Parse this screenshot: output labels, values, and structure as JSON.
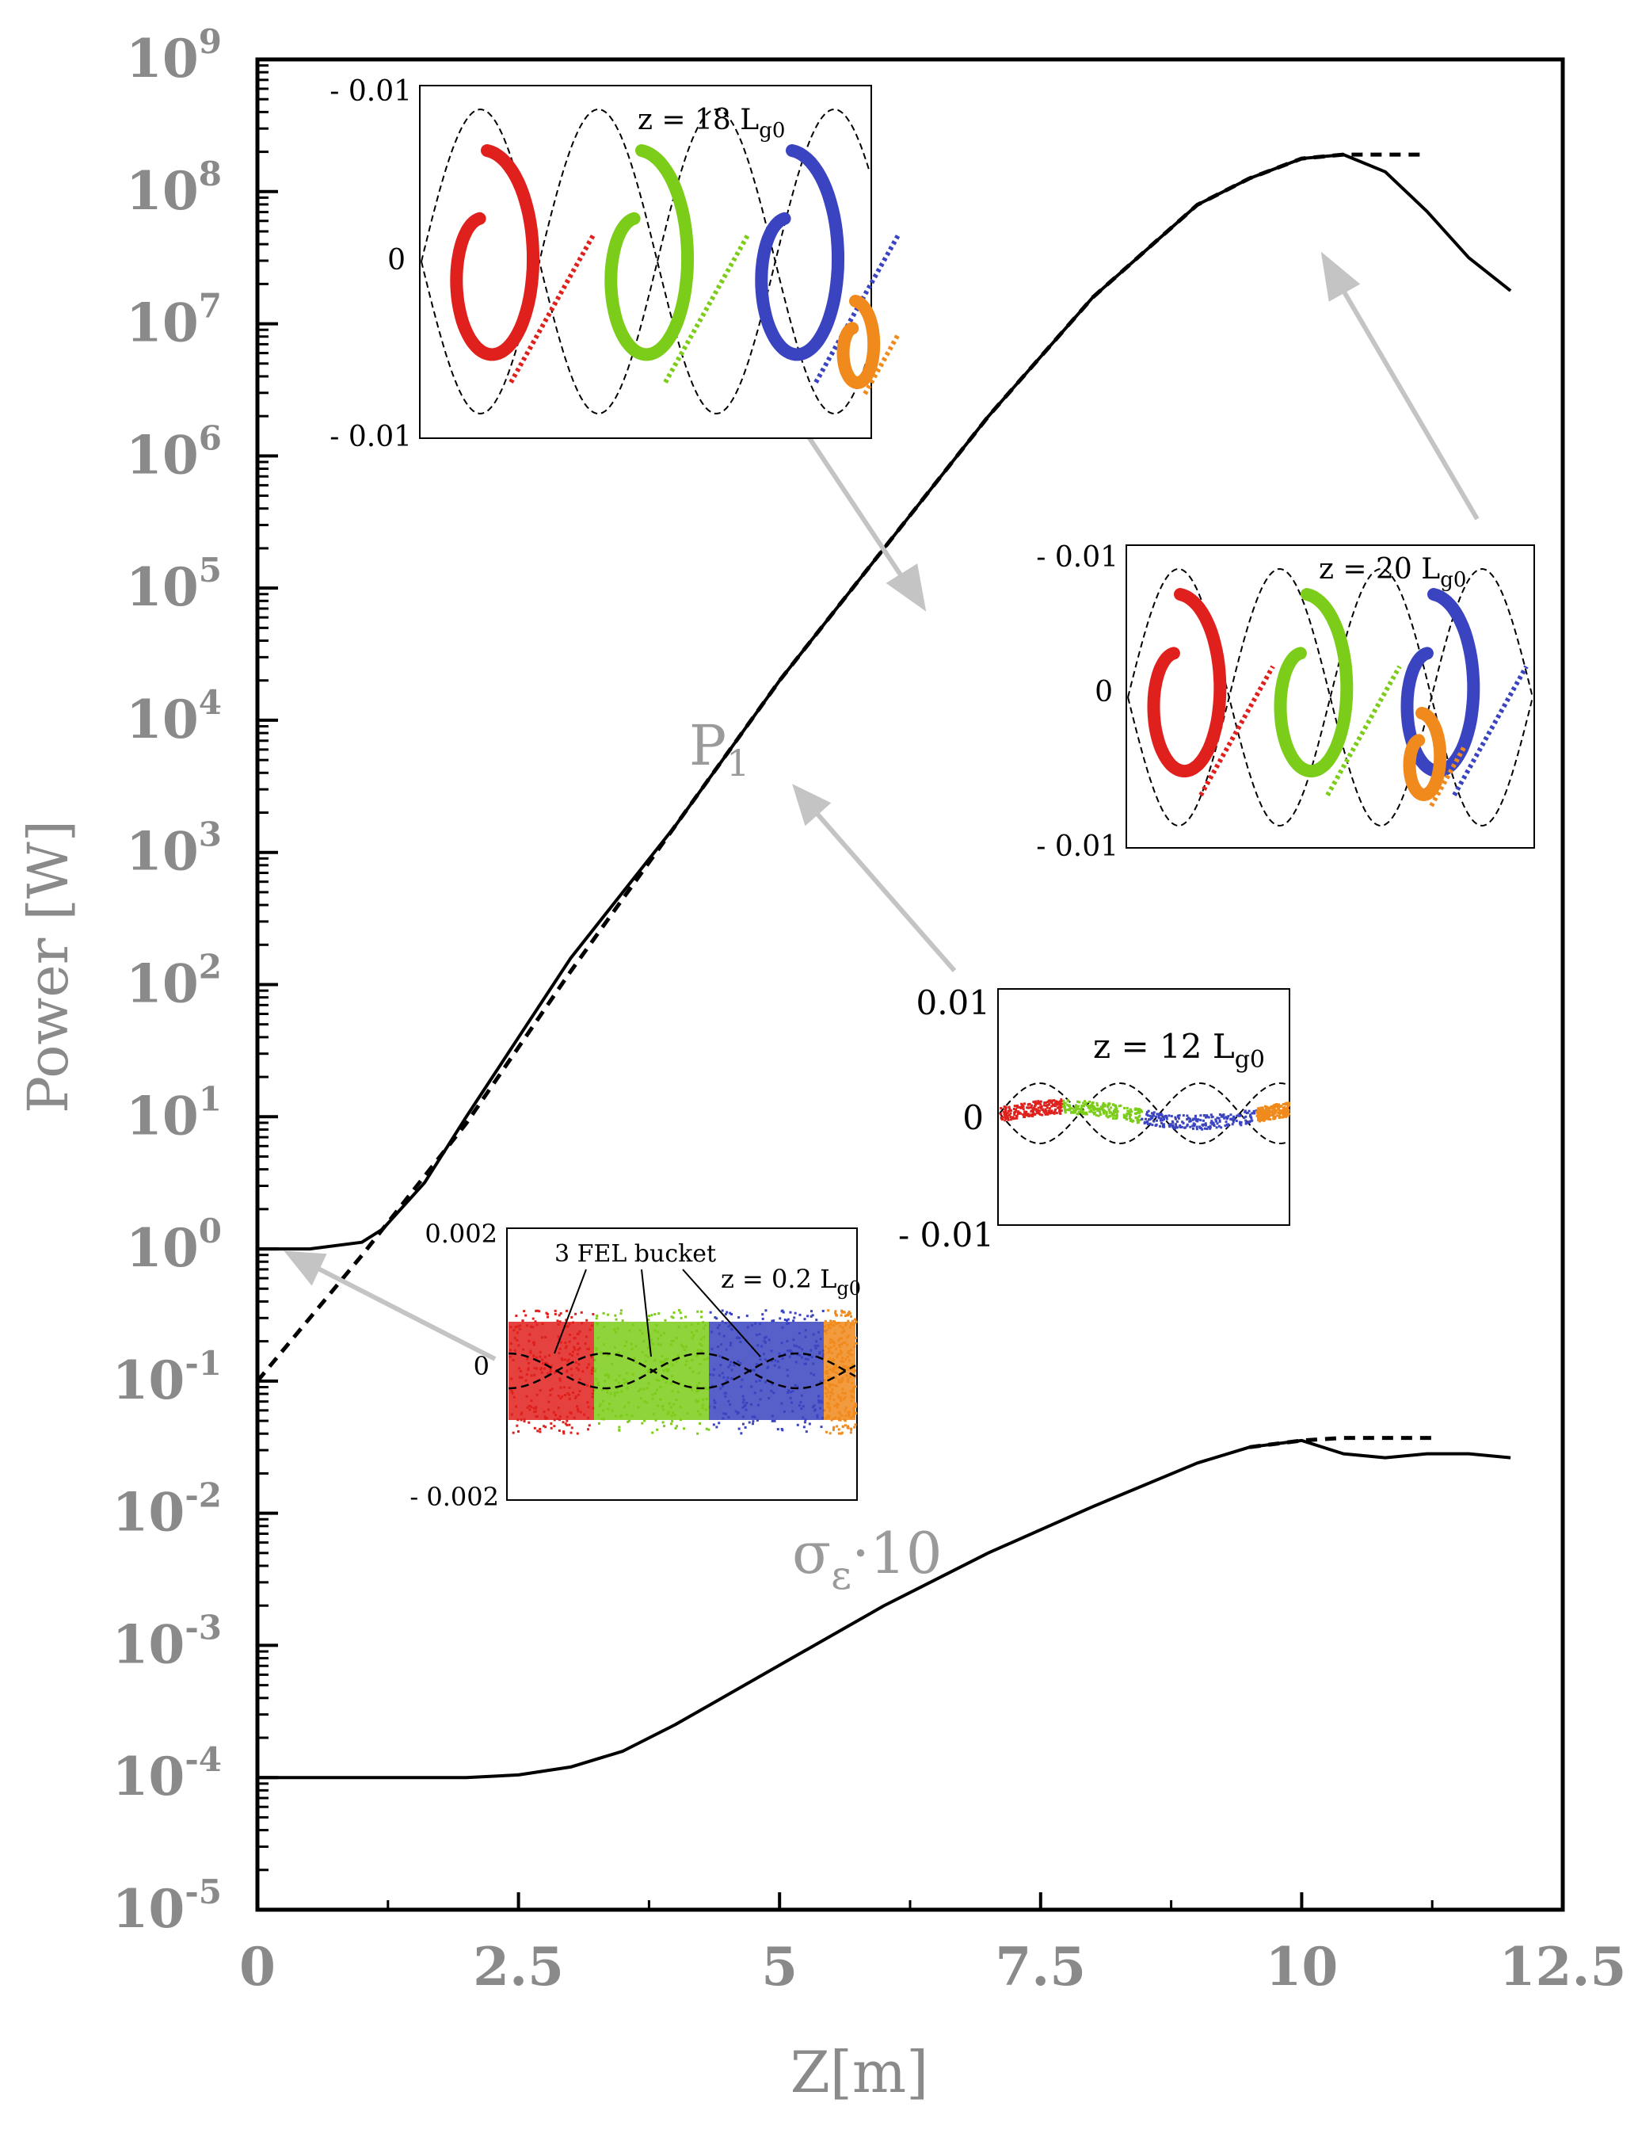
{
  "chart_data": {
    "type": "line",
    "title": "",
    "xlabel": "Z[m]",
    "ylabel": "Power [W]",
    "xlim": [
      0,
      12.5
    ],
    "ylim_log10": [
      -5,
      9
    ],
    "x_ticks": [
      "0",
      "2.5",
      "5",
      "7.5",
      "10",
      "12.5"
    ],
    "x_tick_values": [
      0,
      2.5,
      5,
      7.5,
      10,
      12.5
    ],
    "y_ticks": [
      {
        "base": "10",
        "exp": "9",
        "value": 9
      },
      {
        "base": "10",
        "exp": "8",
        "value": 8
      },
      {
        "base": "10",
        "exp": "7",
        "value": 7
      },
      {
        "base": "10",
        "exp": "6",
        "value": 6
      },
      {
        "base": "10",
        "exp": "5",
        "value": 5
      },
      {
        "base": "10",
        "exp": "4",
        "value": 4
      },
      {
        "base": "10",
        "exp": "3",
        "value": 3
      },
      {
        "base": "10",
        "exp": "2",
        "value": 2
      },
      {
        "base": "10",
        "exp": "1",
        "value": 1
      },
      {
        "base": "10",
        "exp": "0",
        "value": 0
      },
      {
        "base": "10",
        "exp": "-1",
        "value": -1
      },
      {
        "base": "10",
        "exp": "-2",
        "value": -2
      },
      {
        "base": "10",
        "exp": "-3",
        "value": -3
      },
      {
        "base": "10",
        "exp": "-4",
        "value": -4
      },
      {
        "base": "10",
        "exp": "-5",
        "value": -5
      }
    ],
    "series": [
      {
        "name": "P1 solid",
        "style": "solid",
        "x": [
          0,
          0.5,
          1.0,
          1.2,
          1.6,
          2.0,
          2.5,
          3.0,
          4.0,
          5.0,
          6.0,
          7.0,
          8.0,
          9.0,
          9.5,
          10.0,
          10.4,
          10.8,
          11.2,
          11.6,
          12.0
        ],
        "y_log10": [
          0,
          0,
          0.05,
          0.15,
          0.5,
          1.0,
          1.6,
          2.2,
          3.2,
          4.3,
          5.3,
          6.3,
          7.2,
          7.9,
          8.1,
          8.25,
          8.28,
          8.15,
          7.85,
          7.5,
          7.25
        ]
      },
      {
        "name": "P1 dashed",
        "style": "dashed",
        "x": [
          0,
          1.0,
          2.0,
          3.0,
          4.0,
          5.0,
          6.0,
          7.0,
          8.0,
          9.0,
          9.5,
          10.0,
          10.4,
          10.8,
          11.2
        ],
        "y_log10": [
          -1.0,
          -0.05,
          0.95,
          2.1,
          3.2,
          4.3,
          5.3,
          6.3,
          7.2,
          7.9,
          8.1,
          8.25,
          8.28,
          8.28,
          8.28
        ]
      },
      {
        "name": "sigma_e*10 solid",
        "style": "solid",
        "x": [
          0,
          1,
          2,
          2.5,
          3,
          3.5,
          4,
          5,
          6,
          7,
          8,
          9,
          9.5,
          10.0,
          10.4,
          10.8,
          11.2,
          11.6,
          12.0
        ],
        "y_log10": [
          -4.0,
          -4.0,
          -4.0,
          -3.98,
          -3.92,
          -3.8,
          -3.6,
          -3.15,
          -2.7,
          -2.3,
          -1.95,
          -1.62,
          -1.5,
          -1.45,
          -1.55,
          -1.58,
          -1.55,
          -1.55,
          -1.58
        ]
      },
      {
        "name": "sigma_e*10 dashed",
        "style": "dashed",
        "x": [
          9.5,
          10.0,
          10.4,
          11.0,
          11.3
        ],
        "y_log10": [
          -1.5,
          -1.45,
          -1.43,
          -1.43,
          -1.43
        ]
      }
    ],
    "curve_labels": {
      "p1_main": "P",
      "p1_sub": "1",
      "sigma_main": "σ",
      "sigma_sub": "ε",
      "sigma_suffix": "·10"
    },
    "insets": [
      {
        "id": "z18",
        "label_main": "z = 18 L",
        "label_sub": "g0",
        "y_top": "- 0.01",
        "y_mid": "0",
        "y_bottom": "- 0.01"
      },
      {
        "id": "z20",
        "label_main": "z = 20 L",
        "label_sub": "g0",
        "y_top": "- 0.01",
        "y_mid": "0",
        "y_bottom": "- 0.01"
      },
      {
        "id": "z12",
        "label_main": "z = 12 L",
        "label_sub": "g0",
        "y_top": "0.01",
        "y_mid": "0",
        "y_bottom": "- 0.01"
      },
      {
        "id": "z02",
        "label_main": "z = 0.2 L",
        "label_sub": "g0",
        "y_top": "0.002",
        "y_mid": "0",
        "y_bottom": "- 0.002",
        "annotation": "3 FEL bucket"
      }
    ],
    "bucket_colors": [
      "#e0201c",
      "#7ccc1a",
      "#3a44c0",
      "#f08a1c"
    ]
  }
}
